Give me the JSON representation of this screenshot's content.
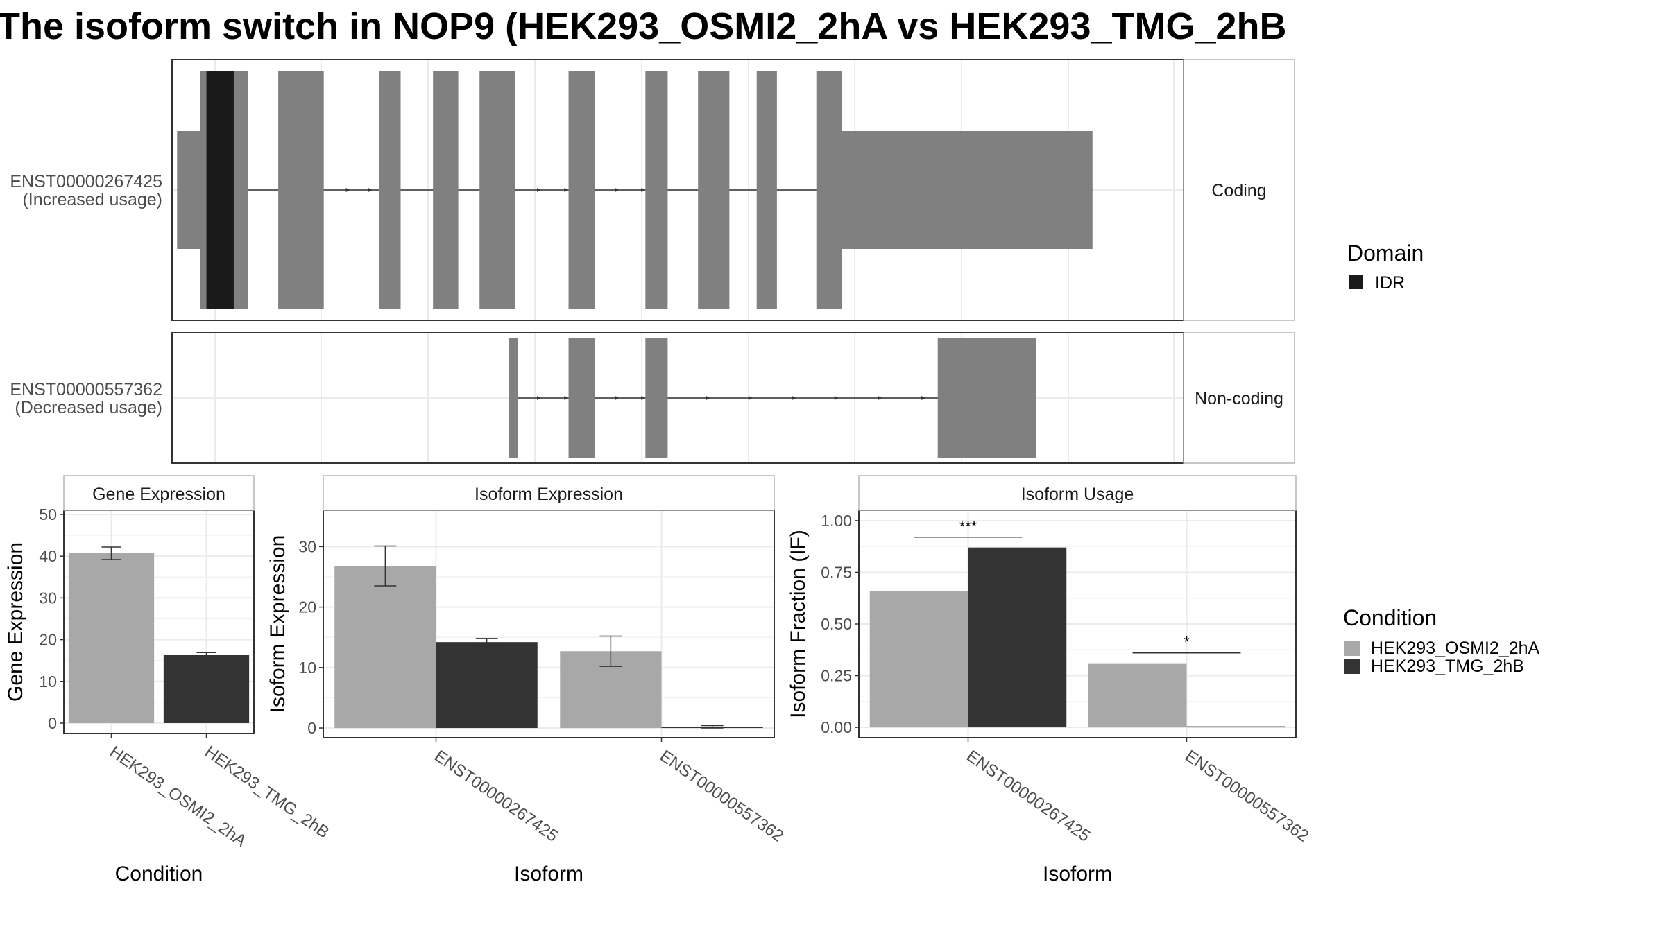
{
  "title": "The isoform switch in NOP9 (HEK293_OSMI2_2hA vs HEK293_TMG_2hB",
  "colors": {
    "exon": "#808080",
    "domain_idr": "#1a1a1a",
    "cond_a": "#a8a8a8",
    "cond_b": "#333333",
    "grid": "#ebebeb",
    "strip_fill": "#ffffff",
    "panel_border": "#333333"
  },
  "transcript_panel": {
    "genomic_range": [
      0,
      1000
    ],
    "tracks": [
      {
        "id": "ENST00000267425",
        "label_line1": "ENST00000267425",
        "label_line2": "(Increased usage)",
        "strip": "Coding",
        "exons": [
          {
            "start": 5,
            "end": 28,
            "kind": "utr"
          },
          {
            "start": 28,
            "end": 75,
            "kind": "cds"
          },
          {
            "start": 105,
            "end": 150,
            "kind": "cds"
          },
          {
            "start": 205,
            "end": 226,
            "kind": "cds"
          },
          {
            "start": 258,
            "end": 283,
            "kind": "cds"
          },
          {
            "start": 304,
            "end": 339,
            "kind": "cds"
          },
          {
            "start": 392,
            "end": 418,
            "kind": "cds"
          },
          {
            "start": 468,
            "end": 490,
            "kind": "cds"
          },
          {
            "start": 520,
            "end": 551,
            "kind": "cds"
          },
          {
            "start": 578,
            "end": 598,
            "kind": "cds"
          },
          {
            "start": 637,
            "end": 662,
            "kind": "cds"
          },
          {
            "start": 662,
            "end": 910,
            "kind": "utr"
          }
        ],
        "domains": [
          {
            "name": "IDR",
            "start": 34,
            "end": 61
          }
        ],
        "arrows": [
          176,
          198,
          365,
          392,
          442,
          468
        ]
      },
      {
        "id": "ENST00000557362",
        "label_line1": "ENST00000557362",
        "label_line2": "(Decreased usage)",
        "strip": "Non-coding",
        "exons": [
          {
            "start": 333,
            "end": 342,
            "kind": "utr"
          },
          {
            "start": 392,
            "end": 418,
            "kind": "utr"
          },
          {
            "start": 468,
            "end": 490,
            "kind": "utr"
          },
          {
            "start": 757,
            "end": 854,
            "kind": "utr"
          }
        ],
        "domains": [],
        "arrows": [
          365,
          392,
          442,
          468,
          532,
          574,
          617,
          659,
          702,
          745
        ]
      }
    ]
  },
  "domain_legend": {
    "title": "Domain",
    "items": [
      {
        "label": "IDR",
        "color_key": "domain_idr"
      }
    ]
  },
  "condition_legend": {
    "title": "Condition",
    "items": [
      {
        "label": "HEK293_OSMI2_2hA",
        "color_key": "cond_a"
      },
      {
        "label": "HEK293_TMG_2hB",
        "color_key": "cond_b"
      }
    ]
  },
  "chart_data": [
    {
      "type": "bar",
      "title": "Gene Expression",
      "xlabel": "Condition",
      "ylabel": "Gene Expression",
      "categories": [
        "HEK293_OSMI2_2hA",
        "HEK293_TMG_2hB"
      ],
      "values": [
        40.7,
        16.4
      ],
      "error": [
        [
          39.2,
          42.2
        ],
        [
          15.9,
          16.9
        ]
      ],
      "ylim": [
        -2.5,
        51
      ],
      "yticks": [
        0,
        10,
        20,
        30,
        40,
        50
      ],
      "ytick_labels": [
        "0",
        "10",
        "20",
        "30",
        "40",
        "50"
      ]
    },
    {
      "type": "bar",
      "title": "Isoform Expression",
      "xlabel": "Isoform",
      "ylabel": "Isoform Expression",
      "categories": [
        "ENST00000267425",
        "ENST00000557362"
      ],
      "series": [
        {
          "name": "HEK293_OSMI2_2hA",
          "values": [
            26.8,
            12.7
          ],
          "error": [
            [
              23.5,
              30.1
            ],
            [
              10.2,
              15.2
            ]
          ]
        },
        {
          "name": "HEK293_TMG_2hB",
          "values": [
            14.2,
            0.2
          ],
          "error": [
            [
              13.6,
              14.8
            ],
            [
              0.0,
              0.4
            ]
          ]
        }
      ],
      "ylim": [
        -1.6,
        36
      ],
      "yticks": [
        0,
        10,
        20,
        30
      ],
      "ytick_labels": [
        "0",
        "10",
        "20",
        "30"
      ]
    },
    {
      "type": "bar",
      "title": "Isoform Usage",
      "xlabel": "Isoform",
      "ylabel": "Isoform Fraction (IF)",
      "categories": [
        "ENST00000267425",
        "ENST00000557362"
      ],
      "series": [
        {
          "name": "HEK293_OSMI2_2hA",
          "values": [
            0.66,
            0.31
          ]
        },
        {
          "name": "HEK293_TMG_2hB",
          "values": [
            0.87,
            0.005
          ]
        }
      ],
      "significance": [
        {
          "category_index": 0,
          "label": "***",
          "y": 0.92
        },
        {
          "category_index": 1,
          "label": "*",
          "y": 0.36
        }
      ],
      "ylim": [
        -0.05,
        1.05
      ],
      "yticks": [
        0,
        0.25,
        0.5,
        0.75,
        1.0
      ],
      "ytick_labels": [
        "0.00",
        "0.25",
        "0.50",
        "0.75",
        "1.00"
      ]
    }
  ]
}
